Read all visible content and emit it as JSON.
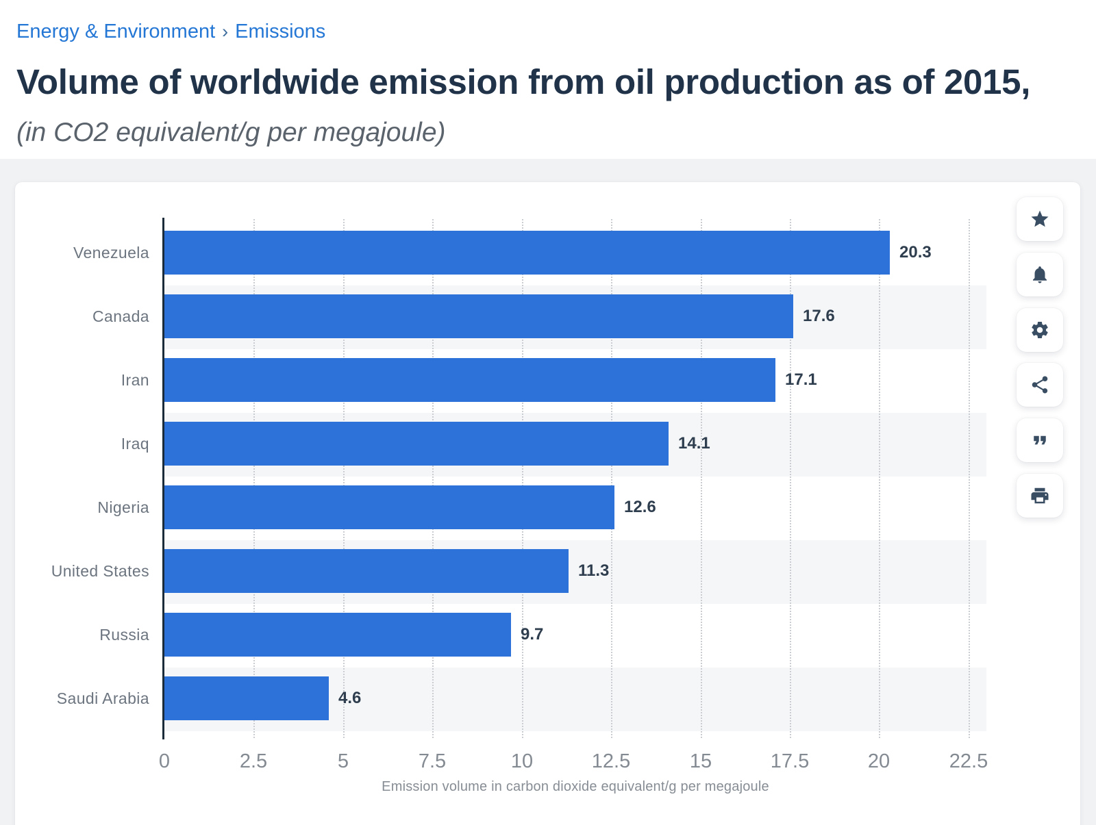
{
  "breadcrumb": {
    "separator": "›",
    "items": [
      {
        "label": "Energy & Environment"
      },
      {
        "label": "Emissions"
      }
    ]
  },
  "header": {
    "title": "Volume of worldwide emission from oil production as of 2015,",
    "subtitle": "(in CO2 equivalent/g per megajoule)"
  },
  "chart_data": {
    "type": "bar",
    "orientation": "horizontal",
    "categories": [
      "Venezuela",
      "Canada",
      "Iran",
      "Iraq",
      "Nigeria",
      "United States",
      "Russia",
      "Saudi Arabia"
    ],
    "values": [
      20.3,
      17.6,
      17.1,
      14.1,
      12.6,
      11.3,
      9.7,
      4.6
    ],
    "value_labels": [
      "20.3",
      "17.6",
      "17.1",
      "14.1",
      "12.6",
      "11.3",
      "9.7",
      "4.6"
    ],
    "x_ticks": [
      0,
      2.5,
      5,
      7.5,
      10,
      12.5,
      15,
      17.5,
      20,
      22.5
    ],
    "x_tick_labels": [
      "0",
      "2.5",
      "5",
      "7.5",
      "10",
      "12.5",
      "15",
      "17.5",
      "20",
      "22.5"
    ],
    "xlim": [
      0,
      23
    ],
    "xlabel": "Emission volume in carbon dioxide equivalent/g per megajoule",
    "title": "Volume of worldwide emission from oil production as of 2015",
    "legend": "none",
    "grid": "vertical-dotted",
    "row_striping": "alternate",
    "colors": {
      "bar": "#2d72d9",
      "axis_line": "#1c2b3a",
      "gridline": "#c9cdd2",
      "row_stripe": "#f5f6f8",
      "value_label": "#2f3e4e",
      "category_label": "#6c757f",
      "tick_label": "#848a92"
    }
  },
  "actions": {
    "buttons": [
      {
        "name": "favorite",
        "icon": "star-icon"
      },
      {
        "name": "alerts",
        "icon": "bell-icon"
      },
      {
        "name": "settings",
        "icon": "gear-icon"
      },
      {
        "name": "share",
        "icon": "share-icon"
      },
      {
        "name": "cite",
        "icon": "quote-icon"
      },
      {
        "name": "print",
        "icon": "printer-icon"
      }
    ]
  },
  "theme": {
    "link_blue": "#2577d5",
    "title_navy": "#203349",
    "section_bg": "#f1f2f4",
    "card_bg": "#ffffff"
  }
}
